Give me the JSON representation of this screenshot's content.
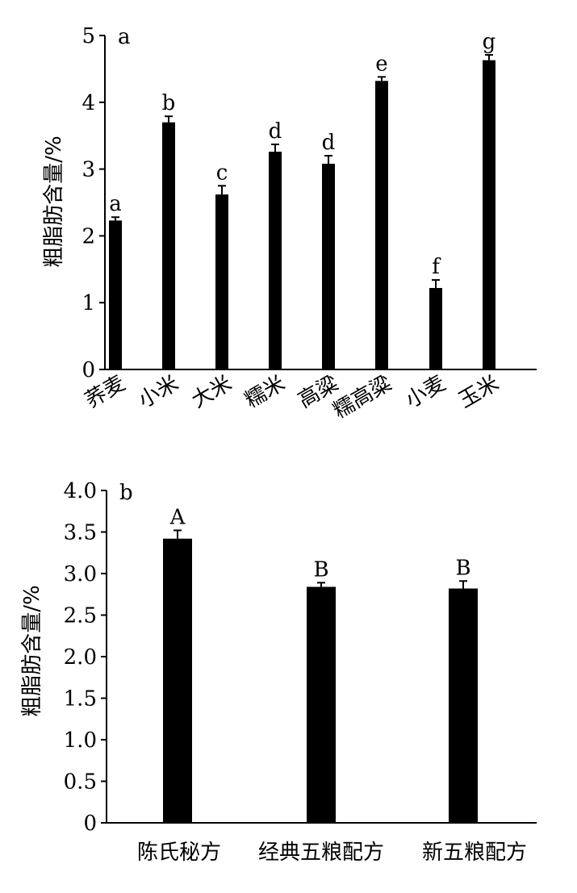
{
  "chart_data": [
    {
      "type": "bar",
      "panel_label": "a",
      "ylabel": "粗脂肪含量/%",
      "ylim": [
        0,
        5
      ],
      "yticks": [
        "0",
        "1",
        "2",
        "3",
        "4",
        "5"
      ],
      "categories": [
        "荞麦",
        "小米",
        "大米",
        "糯米",
        "高粱",
        "糯高粱",
        "小麦",
        "玉米"
      ],
      "values": [
        2.23,
        3.7,
        2.62,
        3.26,
        3.08,
        4.32,
        1.22,
        4.63
      ],
      "errors": [
        0.05,
        0.09,
        0.13,
        0.11,
        0.12,
        0.06,
        0.12,
        0.08
      ],
      "significance": [
        "a",
        "b",
        "c",
        "d",
        "d",
        "e",
        "f",
        "g"
      ],
      "bar_color": "#000000"
    },
    {
      "type": "bar",
      "panel_label": "b",
      "ylabel": "粗脂肪含量/%",
      "ylim": [
        0,
        4
      ],
      "yticks": [
        "0",
        "0.5",
        "1.0",
        "1.5",
        "2.0",
        "2.5",
        "3.0",
        "3.5",
        "4.0"
      ],
      "categories": [
        "陈氏秘方",
        "经典五粮配方",
        "新五粮配方"
      ],
      "values": [
        3.42,
        2.84,
        2.82
      ],
      "errors": [
        0.1,
        0.05,
        0.09
      ],
      "significance": [
        "A",
        "B",
        "B"
      ],
      "bar_color": "#000000"
    }
  ]
}
